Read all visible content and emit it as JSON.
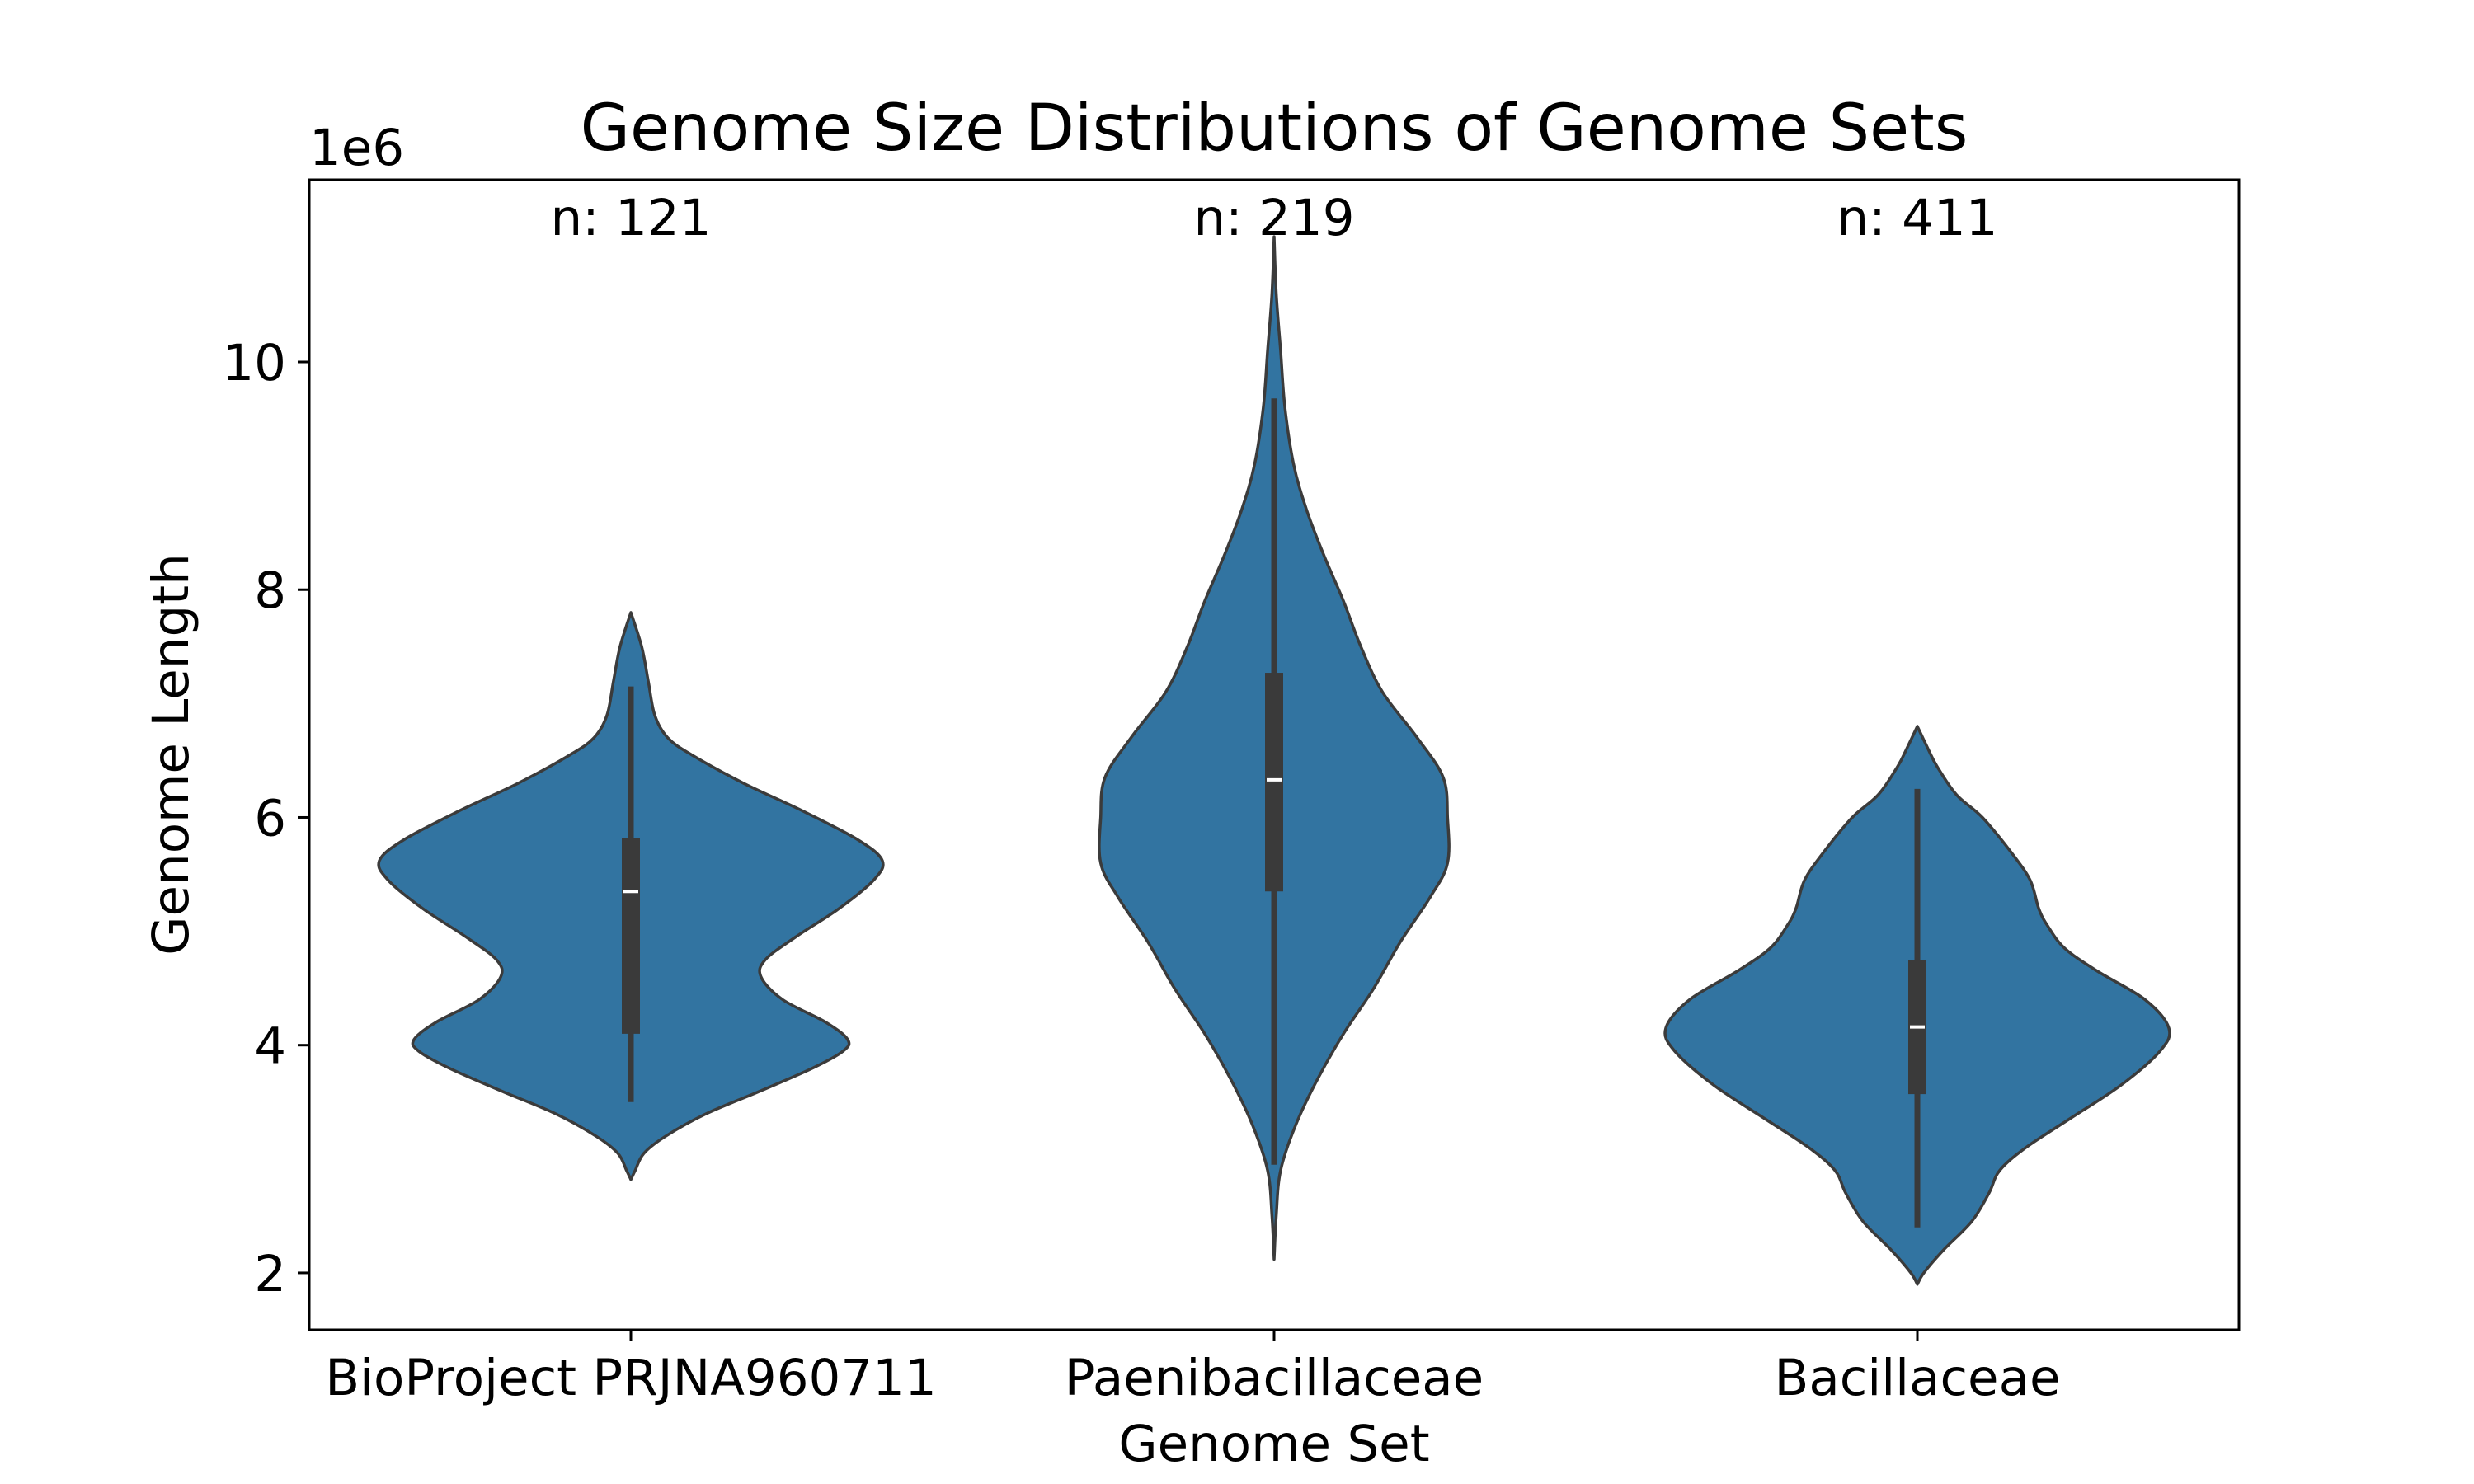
{
  "chart_data": {
    "type": "violin",
    "title": "Genome Size Distributions of Genome Sets",
    "xlabel": "Genome Set",
    "ylabel": "Genome Length",
    "y_offset_label": "1e6",
    "ylim": [
      1.5,
      11.6
    ],
    "yticks": [
      2,
      4,
      6,
      8,
      10
    ],
    "categories": [
      "BioProject PRJNA960711",
      "Paenibacillaceae",
      "Bacillaceae"
    ],
    "n_labels": [
      "n: 121",
      "n: 219",
      "n: 411"
    ],
    "color": "#3274a1",
    "inner_color": "#3a3a3a",
    "series": [
      {
        "category": "BioProject PRJNA960711",
        "box": {
          "whisker_low": 3.5,
          "q1": 4.1,
          "median": 5.35,
          "q3": 5.82,
          "whisker_high": 7.15
        },
        "density": [
          [
            2.82,
            0.0
          ],
          [
            2.9,
            0.02
          ],
          [
            3.05,
            0.06
          ],
          [
            3.2,
            0.16
          ],
          [
            3.4,
            0.35
          ],
          [
            3.6,
            0.6
          ],
          [
            3.8,
            0.84
          ],
          [
            3.95,
            0.98
          ],
          [
            4.05,
            1.0
          ],
          [
            4.2,
            0.9
          ],
          [
            4.4,
            0.7
          ],
          [
            4.6,
            0.6
          ],
          [
            4.75,
            0.62
          ],
          [
            4.95,
            0.76
          ],
          [
            5.2,
            0.96
          ],
          [
            5.45,
            1.12
          ],
          [
            5.62,
            1.16
          ],
          [
            5.8,
            1.05
          ],
          [
            6.05,
            0.8
          ],
          [
            6.3,
            0.52
          ],
          [
            6.55,
            0.28
          ],
          [
            6.7,
            0.17
          ],
          [
            6.9,
            0.11
          ],
          [
            7.2,
            0.08
          ],
          [
            7.5,
            0.05
          ],
          [
            7.8,
            0.0
          ]
        ]
      },
      {
        "category": "Paenibacillaceae",
        "box": {
          "whisker_low": 2.95,
          "q1": 5.35,
          "median": 6.33,
          "q3": 7.27,
          "whisker_high": 9.68
        },
        "density": [
          [
            2.12,
            0.0
          ],
          [
            2.5,
            0.01
          ],
          [
            2.9,
            0.03
          ],
          [
            3.3,
            0.1
          ],
          [
            3.7,
            0.2
          ],
          [
            4.1,
            0.32
          ],
          [
            4.5,
            0.46
          ],
          [
            4.9,
            0.58
          ],
          [
            5.3,
            0.72
          ],
          [
            5.6,
            0.8
          ],
          [
            6.0,
            0.8
          ],
          [
            6.35,
            0.78
          ],
          [
            6.7,
            0.66
          ],
          [
            7.1,
            0.5
          ],
          [
            7.5,
            0.4
          ],
          [
            7.9,
            0.32
          ],
          [
            8.3,
            0.23
          ],
          [
            8.7,
            0.15
          ],
          [
            9.1,
            0.09
          ],
          [
            9.6,
            0.05
          ],
          [
            10.1,
            0.03
          ],
          [
            10.6,
            0.01
          ],
          [
            11.1,
            0.0
          ]
        ]
      },
      {
        "category": "Bacillaceae",
        "box": {
          "whisker_low": 2.4,
          "q1": 3.57,
          "median": 4.16,
          "q3": 4.75,
          "whisker_high": 6.25
        },
        "density": [
          [
            1.9,
            0.0
          ],
          [
            2.0,
            0.03
          ],
          [
            2.2,
            0.12
          ],
          [
            2.45,
            0.25
          ],
          [
            2.7,
            0.33
          ],
          [
            2.9,
            0.38
          ],
          [
            3.1,
            0.5
          ],
          [
            3.35,
            0.7
          ],
          [
            3.65,
            0.94
          ],
          [
            3.95,
            1.12
          ],
          [
            4.15,
            1.16
          ],
          [
            4.4,
            1.05
          ],
          [
            4.65,
            0.83
          ],
          [
            4.85,
            0.68
          ],
          [
            5.05,
            0.6
          ],
          [
            5.2,
            0.56
          ],
          [
            5.45,
            0.52
          ],
          [
            5.7,
            0.43
          ],
          [
            6.0,
            0.3
          ],
          [
            6.2,
            0.18
          ],
          [
            6.45,
            0.09
          ],
          [
            6.6,
            0.05
          ],
          [
            6.8,
            0.0
          ]
        ]
      }
    ]
  }
}
